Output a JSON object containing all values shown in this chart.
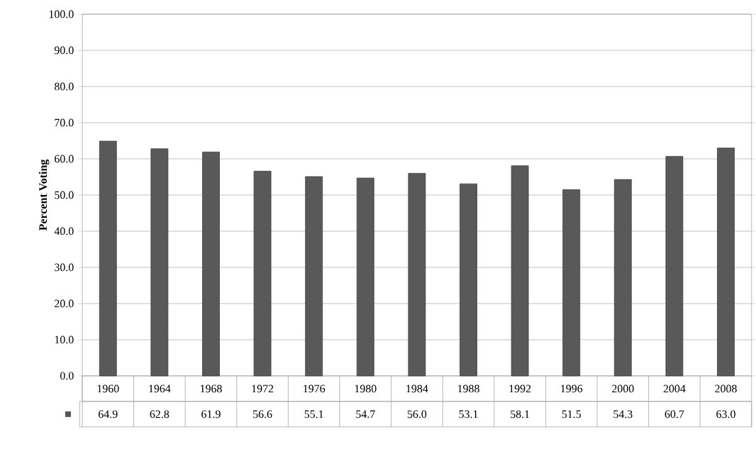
{
  "chart_data": {
    "type": "bar",
    "ylabel": "Percent Voting",
    "categories": [
      "1960",
      "1964",
      "1968",
      "1972",
      "1976",
      "1980",
      "1984",
      "1988",
      "1992",
      "1996",
      "2000",
      "2004",
      "2008"
    ],
    "values": [
      64.9,
      62.8,
      61.9,
      56.6,
      55.1,
      54.7,
      56.0,
      53.1,
      58.1,
      51.5,
      54.3,
      60.7,
      63.0
    ],
    "color": "#595959",
    "ylim": [
      0,
      100
    ],
    "yticks": [
      {
        "value": 0,
        "label": "0.0"
      },
      {
        "value": 10,
        "label": "10.0"
      },
      {
        "value": 20,
        "label": "20.0"
      },
      {
        "value": 30,
        "label": "30.0"
      },
      {
        "value": 40,
        "label": "40.0"
      },
      {
        "value": 50,
        "label": "50.0"
      },
      {
        "value": 60,
        "label": "60.0"
      },
      {
        "value": 70,
        "label": "70.0"
      },
      {
        "value": 80,
        "label": "80.0"
      },
      {
        "value": 90,
        "label": "90.0"
      },
      {
        "value": 100,
        "label": "100.0"
      }
    ],
    "value_labels": [
      "64.9",
      "62.8",
      "61.9",
      "56.6",
      "55.1",
      "54.7",
      "56.0",
      "53.1",
      "58.1",
      "51.5",
      "54.3",
      "60.7",
      "63.0"
    ],
    "grid": "y"
  }
}
